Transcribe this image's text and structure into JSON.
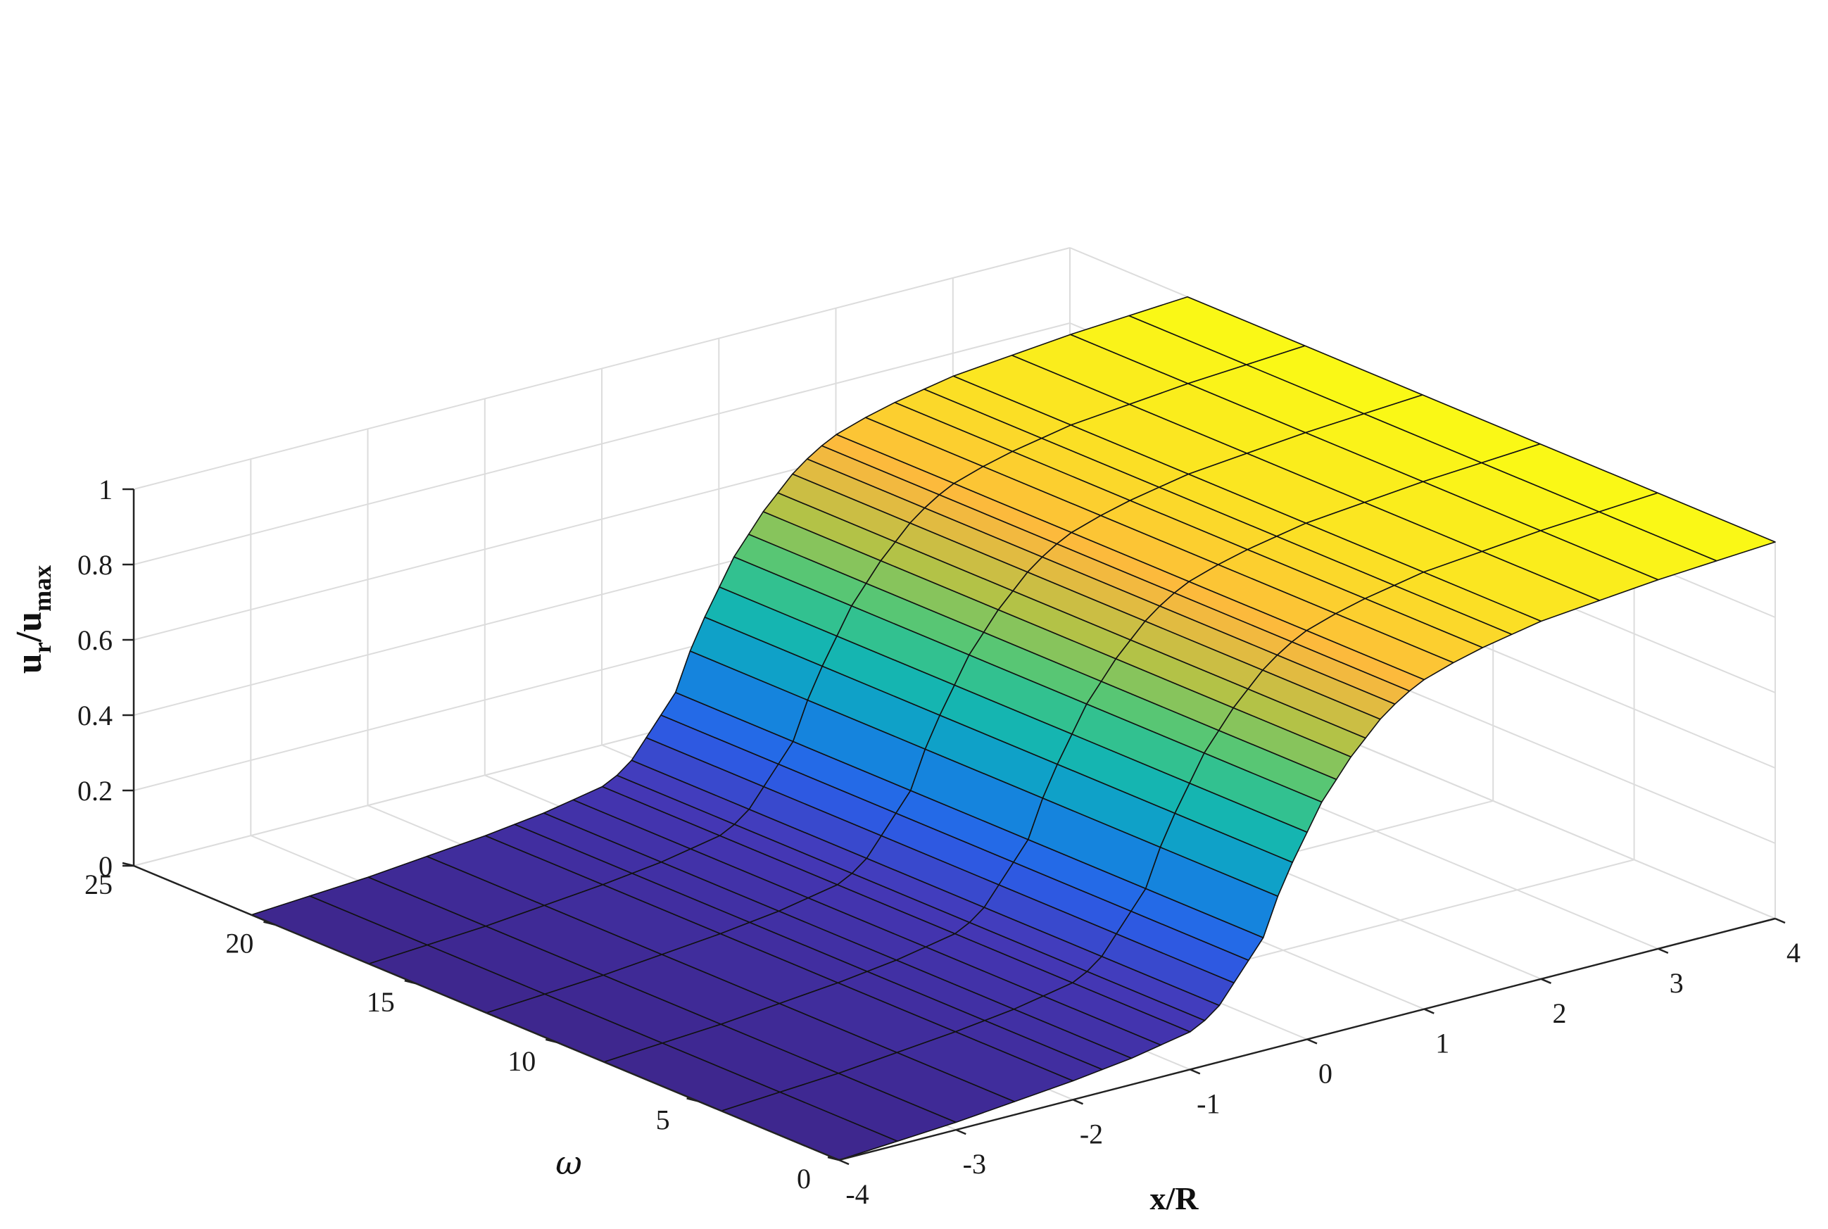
{
  "chart_data": {
    "type": "surface3d",
    "x_axis": {
      "label": "x/R",
      "range": [
        -4,
        4
      ],
      "ticks": [
        "-4",
        "-3",
        "-2",
        "-1",
        "0",
        "1",
        "2",
        "3",
        "4"
      ]
    },
    "y_axis": {
      "label": "ω",
      "range": [
        0,
        25
      ],
      "ticks": [
        "0",
        "5",
        "10",
        "15",
        "20",
        "25"
      ]
    },
    "z_axis": {
      "label_main": "u",
      "label_sub1": "r",
      "label_mid": "/u",
      "label_sub2": "max",
      "range": [
        0,
        1
      ],
      "ticks": [
        "0",
        "0.2",
        "0.4",
        "0.6",
        "0.8",
        "1"
      ]
    },
    "x_values": [
      -4,
      -3.5,
      -3,
      -2.5,
      -2,
      -1.75,
      -1.5,
      -1.25,
      -1,
      -0.875,
      -0.75,
      -0.625,
      -0.5,
      -0.375,
      -0.25,
      -0.125,
      0,
      0.125,
      0.25,
      0.375,
      0.5,
      0.625,
      0.75,
      0.875,
      1,
      1.25,
      1.5,
      1.75,
      2,
      2.5,
      3,
      3.5,
      4
    ],
    "z_values": [
      0,
      0.01,
      0.02,
      0.035,
      0.05,
      0.06,
      0.07,
      0.085,
      0.1,
      0.12,
      0.15,
      0.2,
      0.25,
      0.3,
      0.4,
      0.48,
      0.55,
      0.62,
      0.67,
      0.72,
      0.76,
      0.8,
      0.83,
      0.855,
      0.875,
      0.9,
      0.92,
      0.935,
      0.95,
      0.965,
      0.98,
      0.99,
      1.0
    ],
    "omega_values": [
      0,
      5,
      10,
      15,
      20,
      25
    ],
    "grid": true,
    "colormap": "parula"
  }
}
